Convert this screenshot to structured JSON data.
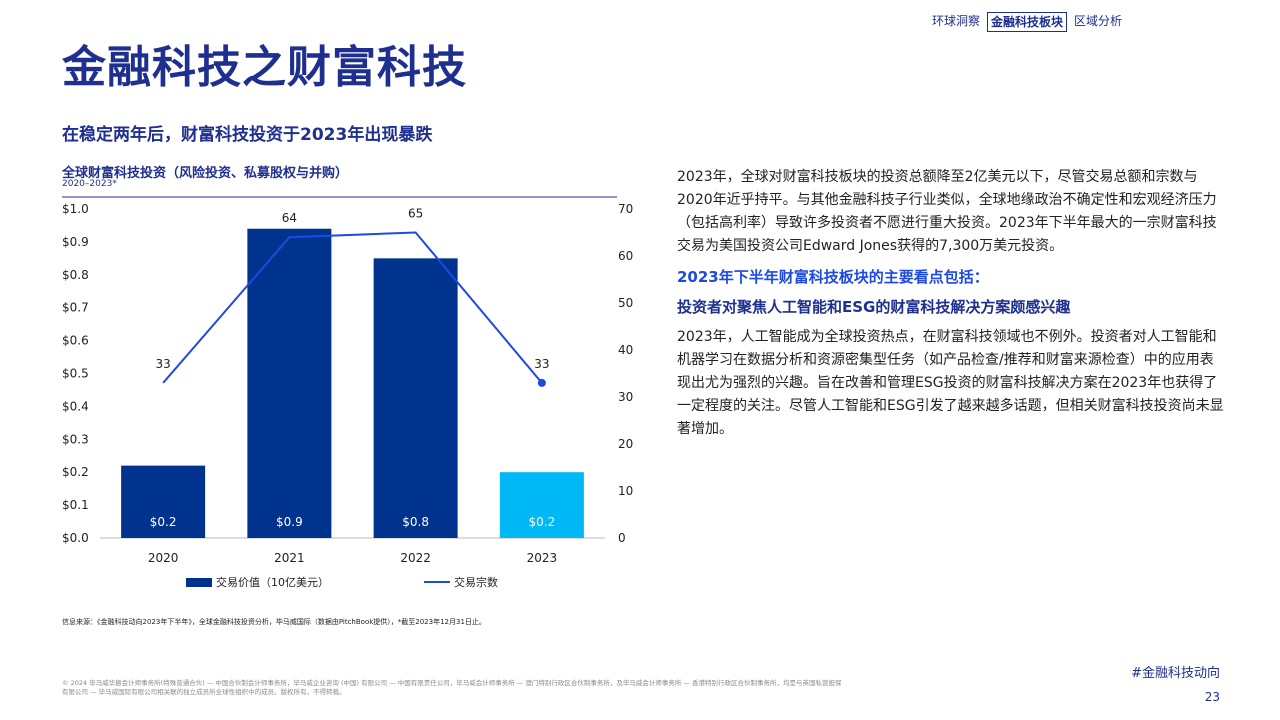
{
  "nav": {
    "items": [
      "环球洞察",
      "金融科技板块",
      "区域分析"
    ],
    "active_index": 1
  },
  "page_title": "金融科技之财富科技",
  "subtitle": "在稳定两年后，财富科技投资于2023年出现暴跌",
  "chart_data": {
    "type": "bar",
    "title": "全球财富科技投资（风险投资、私募股权与并购）",
    "period": "2020–2023*",
    "categories": [
      "2020",
      "2021",
      "2022",
      "2023"
    ],
    "series": [
      {
        "name": "交易价值（10亿美元）",
        "type": "bar",
        "axis": "left",
        "values": [
          0.22,
          0.94,
          0.85,
          0.2
        ],
        "labels": [
          "$0.2",
          "$0.9",
          "$0.8",
          "$0.2"
        ],
        "colors": [
          "#00338d",
          "#00338d",
          "#00338d",
          "#00b8f5"
        ]
      },
      {
        "name": "交易宗数",
        "type": "line",
        "axis": "right",
        "values": [
          33,
          64,
          65,
          33
        ],
        "color": "#1e49e2"
      }
    ],
    "left_axis": {
      "range": [
        0,
        1.0
      ],
      "ticks": [
        "$0.0",
        "$0.1",
        "$0.2",
        "$0.3",
        "$0.4",
        "$0.5",
        "$0.6",
        "$0.7",
        "$0.8",
        "$0.9",
        "$1.0"
      ]
    },
    "right_axis": {
      "range": [
        0,
        70
      ],
      "ticks": [
        "0",
        "10",
        "20",
        "30",
        "40",
        "50",
        "60",
        "70"
      ]
    },
    "grid": false,
    "legend_position": "bottom"
  },
  "source": "信息来源：《金融科技动向2023年下半年》，全球金融科技投资分析，毕马威国际（数据由PitchBook提供），*截至2023年12月31日止。",
  "right_column": {
    "para1": "2023年，全球对财富科技板块的投资总额降至2亿美元以下，尽管交易总额和宗数与2020年近乎持平。与其他金融科技子行业类似，全球地缘政治不确定性和宏观经济压力（包括高利率）导致许多投资者不愿进行重大投资。2023年下半年最大的一宗财富科技交易为美国投资公司Edward Jones获得的7,300万美元投资。",
    "highlight_heading": "2023年下半年财富科技板块的主要看点包括：",
    "topic_heading": "投资者对聚焦人工智能和ESG的财富科技解决方案颇感兴趣",
    "para2": "2023年，人工智能成为全球投资热点，在财富科技领域也不例外。投资者对人工智能和机器学习在数据分析和资源密集型任务（如产品检查/推荐和财富来源检查）中的应用表现出尤为强烈的兴趣。旨在改善和管理ESG投资的财富科技解决方案在2023年也获得了一定程度的关注。尽管人工智能和ESG引发了越来越多话题，但相关财富科技投资尚未显著增加。"
  },
  "footer": {
    "copyright": "© 2024 毕马威华振会计师事务所(特殊普通合伙) — 中国合伙制会计师事务所，毕马威企业咨询 (中国) 有限公司 — 中国有限责任公司，毕马威会计师事务所 — 澳门特别行政区合伙制事务所，及毕马威会计师事务所 — 香港特别行政区合伙制事务所，均是与英国私营担保有限公司 — 毕马威国际有限公司相关联的独立成员所全球性组织中的成员。版权所有，不得转载。",
    "hashtag": "#金融科技动向",
    "page_number": "23"
  },
  "colors": {
    "brand_dark": "#1e2f8f",
    "bar_dark": "#00338d",
    "bar_light": "#00b8f5",
    "line": "#1e49e2"
  }
}
